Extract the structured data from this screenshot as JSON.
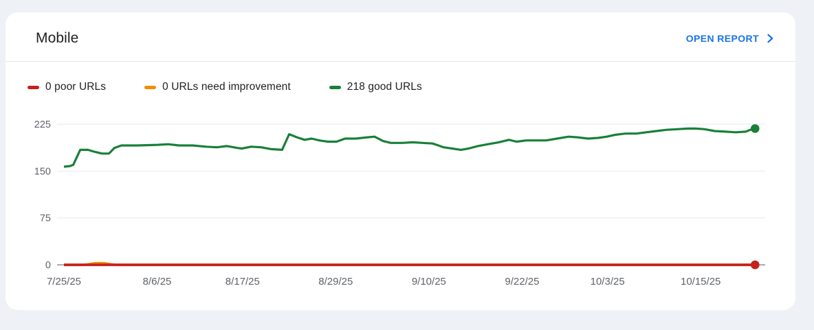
{
  "card": {
    "title": "Mobile",
    "open_report_label": "OPEN REPORT"
  },
  "legend": {
    "items": [
      {
        "label": "0 poor URLs",
        "color": "#c5221f"
      },
      {
        "label": "0 URLs need improvement",
        "color": "#ef8e00"
      },
      {
        "label": "218 good URLs",
        "color": "#188038"
      }
    ]
  },
  "chart_data": {
    "type": "line",
    "title": "Mobile",
    "x_start": "7/25/25",
    "x_end": "10/22/25",
    "x_tick_labels": [
      "7/25/25",
      "8/6/25",
      "8/17/25",
      "8/29/25",
      "9/10/25",
      "9/22/25",
      "10/3/25",
      "10/15/25"
    ],
    "x_tick_days": [
      0,
      12,
      23,
      35,
      47,
      59,
      70,
      82
    ],
    "y_ticks": [
      0,
      75,
      150,
      225
    ],
    "ylim": [
      0,
      247
    ],
    "grid": "horizontal",
    "legend_position": "top",
    "series": [
      {
        "name": "poor URLs",
        "color": "#c5221f",
        "current_value": 0,
        "end_dot": true,
        "points": [
          [
            0,
            0
          ],
          [
            89,
            0
          ]
        ]
      },
      {
        "name": "URLs need improvement",
        "color": "#ef8e00",
        "current_value": 0,
        "end_dot": true,
        "points": [
          [
            0,
            0
          ],
          [
            2.5,
            0
          ],
          [
            3.2,
            1
          ],
          [
            3.9,
            2.5
          ],
          [
            4.6,
            3
          ],
          [
            5.3,
            2.5
          ],
          [
            6,
            1
          ],
          [
            6.8,
            0
          ],
          [
            89,
            0
          ]
        ]
      },
      {
        "name": "good URLs",
        "color": "#188038",
        "current_value": 218,
        "end_dot": true,
        "points": [
          [
            0,
            157
          ],
          [
            0.8,
            158
          ],
          [
            1.2,
            160
          ],
          [
            2.1,
            184
          ],
          [
            3.1,
            184
          ],
          [
            3.9,
            181
          ],
          [
            4.9,
            178
          ],
          [
            5.8,
            178
          ],
          [
            6.5,
            187
          ],
          [
            7.4,
            191
          ],
          [
            9.5,
            191
          ],
          [
            12.1,
            192
          ],
          [
            13.4,
            193
          ],
          [
            14.8,
            191
          ],
          [
            16.6,
            191
          ],
          [
            18.3,
            189
          ],
          [
            19.7,
            188
          ],
          [
            21,
            190
          ],
          [
            22.3,
            187
          ],
          [
            22.9,
            186
          ],
          [
            24.1,
            189
          ],
          [
            25.4,
            188
          ],
          [
            26.7,
            185
          ],
          [
            28.1,
            184
          ],
          [
            29,
            209
          ],
          [
            30,
            204
          ],
          [
            31,
            200
          ],
          [
            31.9,
            202
          ],
          [
            32.9,
            199
          ],
          [
            34,
            197
          ],
          [
            35.1,
            197
          ],
          [
            36.2,
            202
          ],
          [
            37.6,
            202
          ],
          [
            39.1,
            204
          ],
          [
            40,
            205
          ],
          [
            41.1,
            198
          ],
          [
            42.1,
            195
          ],
          [
            43.6,
            195
          ],
          [
            44.9,
            196
          ],
          [
            46.2,
            195
          ],
          [
            47.5,
            194
          ],
          [
            48.9,
            188
          ],
          [
            50,
            186
          ],
          [
            51.1,
            184
          ],
          [
            52.1,
            186
          ],
          [
            53.3,
            190
          ],
          [
            54.6,
            193
          ],
          [
            56,
            196
          ],
          [
            57.3,
            200
          ],
          [
            58.3,
            197
          ],
          [
            59.5,
            199
          ],
          [
            60.8,
            199
          ],
          [
            62.1,
            199
          ],
          [
            63.5,
            202
          ],
          [
            65,
            205
          ],
          [
            66.1,
            204
          ],
          [
            67.5,
            202
          ],
          [
            68.8,
            203
          ],
          [
            69.9,
            205
          ],
          [
            71,
            208
          ],
          [
            72.3,
            210
          ],
          [
            73.7,
            210
          ],
          [
            75,
            212
          ],
          [
            76.3,
            214
          ],
          [
            77.6,
            216
          ],
          [
            79,
            217
          ],
          [
            80.3,
            218
          ],
          [
            81.4,
            218
          ],
          [
            82.5,
            217
          ],
          [
            83.8,
            214
          ],
          [
            85.2,
            213
          ],
          [
            86.5,
            212
          ],
          [
            87.8,
            213
          ],
          [
            88.4,
            216
          ],
          [
            89,
            218
          ]
        ]
      }
    ]
  }
}
